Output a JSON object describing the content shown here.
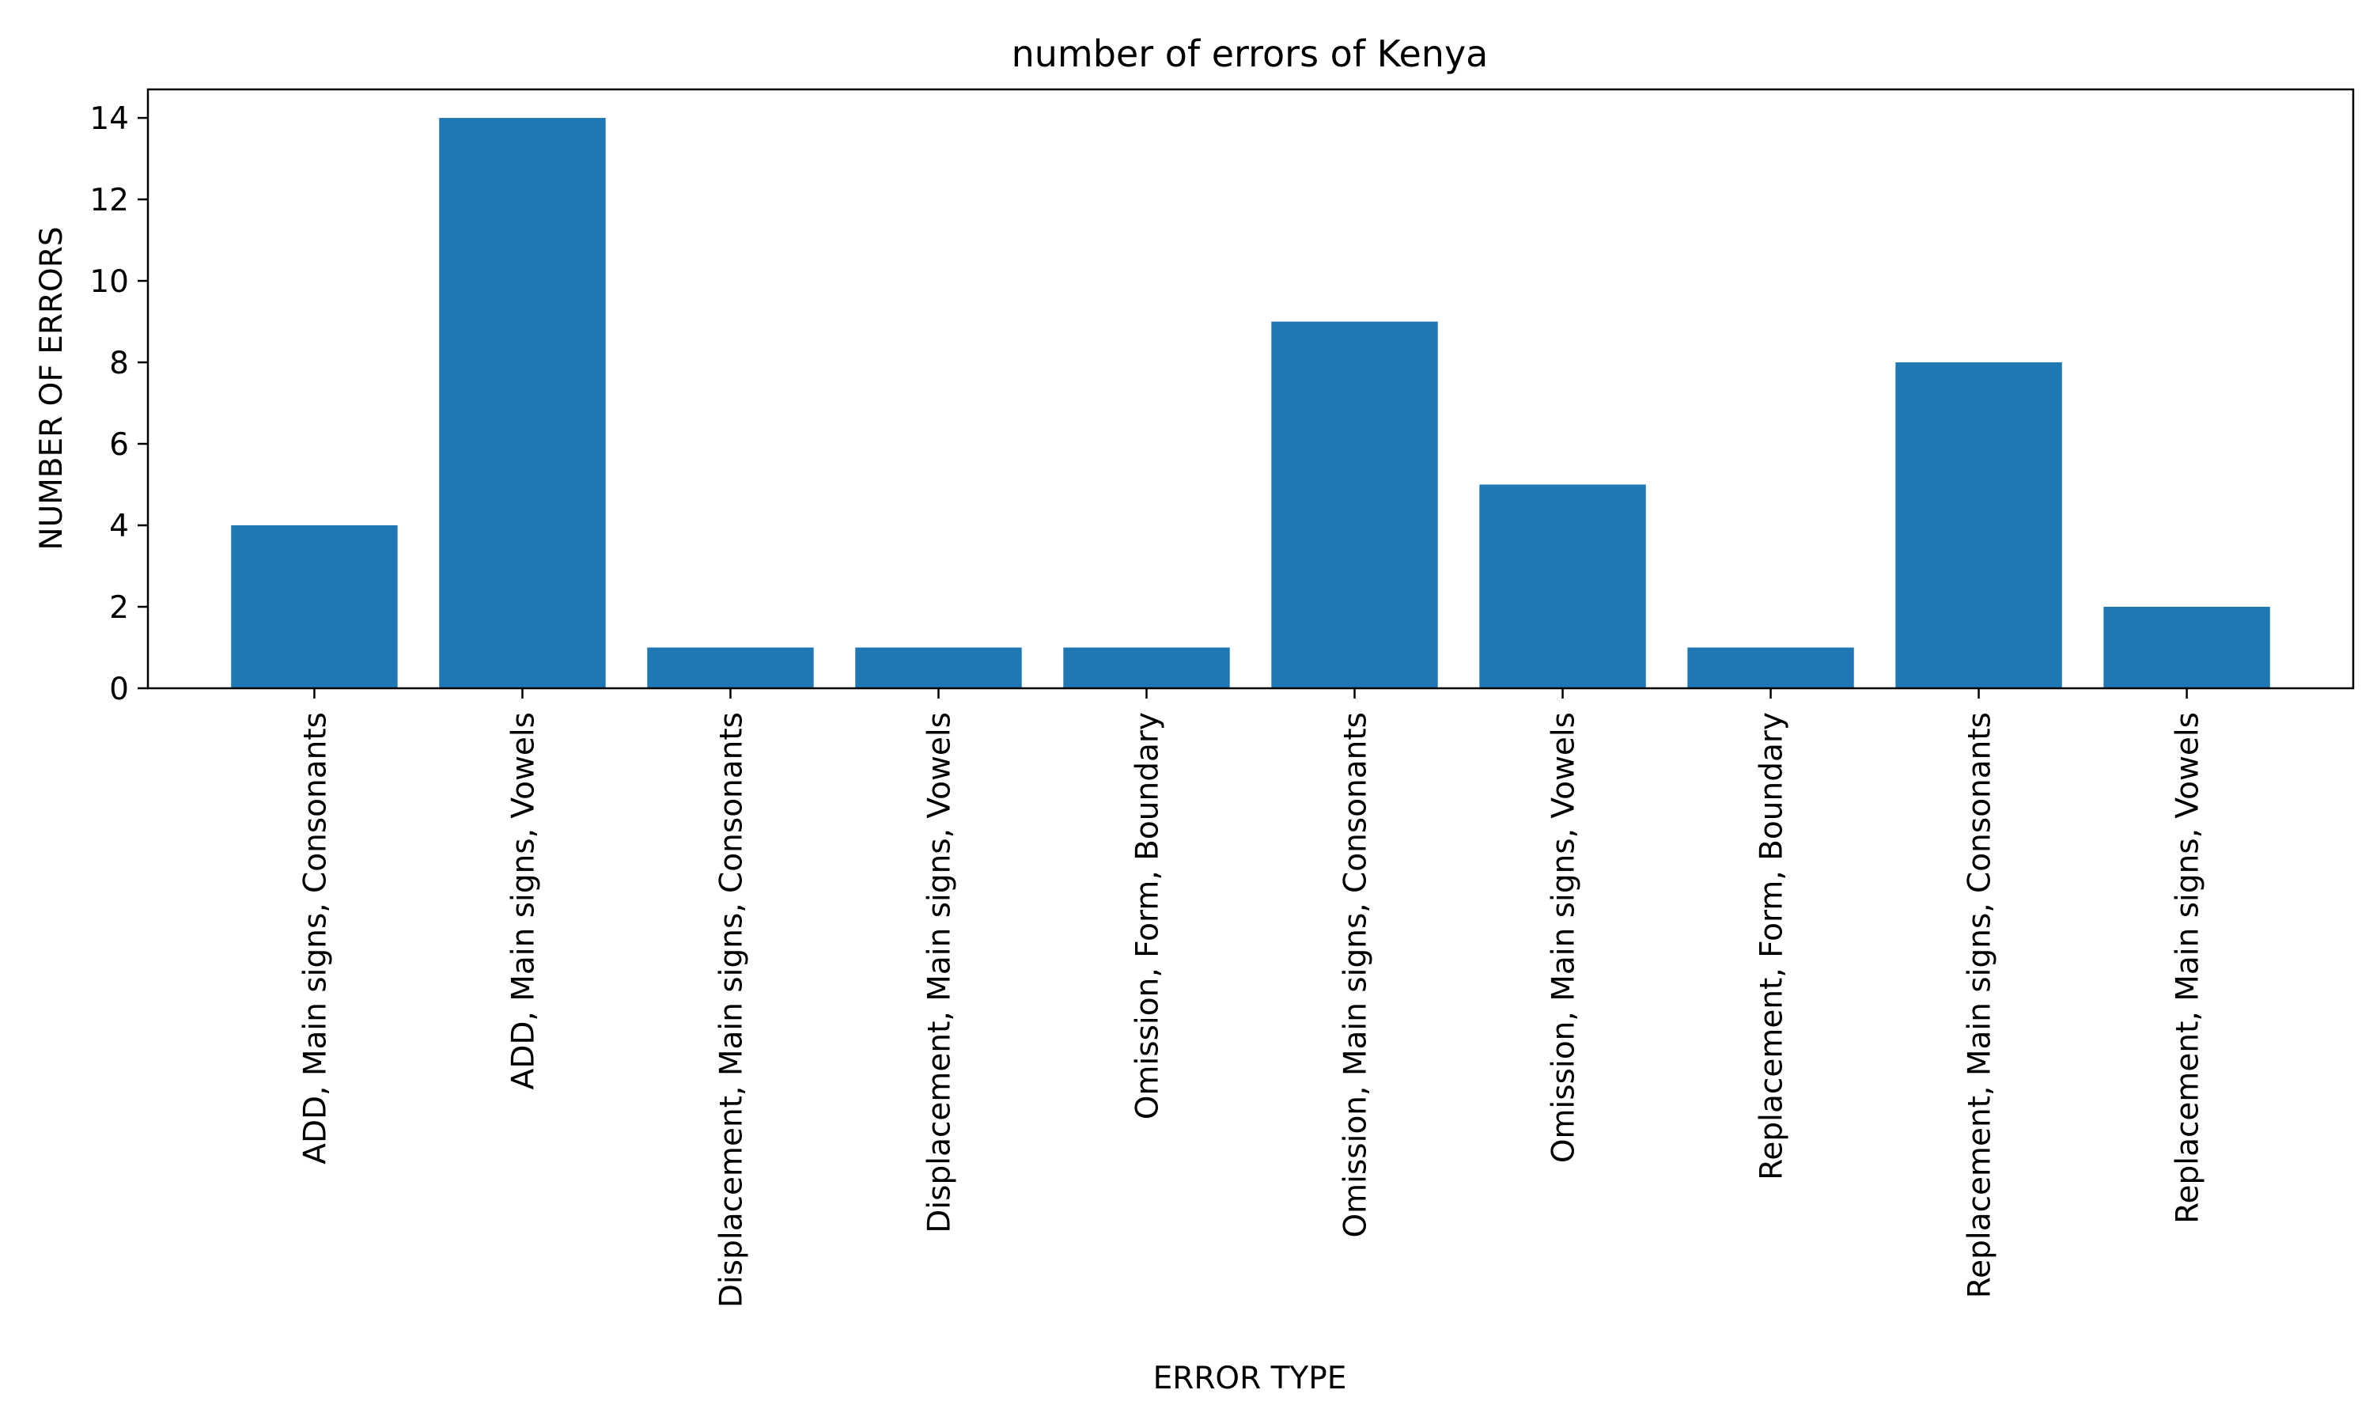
{
  "chart_data": {
    "type": "bar",
    "title": "number of errors of Kenya",
    "xlabel": "ERROR TYPE",
    "ylabel": "NUMBER OF ERRORS",
    "categories": [
      "ADD, Main signs, Consonants",
      "ADD, Main signs, Vowels",
      "Displacement, Main signs, Consonants",
      "Displacement, Main signs, Vowels",
      "Omission, Form, Boundary",
      "Omission, Main signs, Consonants",
      "Omission, Main signs, Vowels",
      "Replacement, Form, Boundary",
      "Replacement, Main signs, Consonants",
      "Replacement, Main signs, Vowels"
    ],
    "values": [
      4,
      14,
      1,
      1,
      1,
      9,
      5,
      1,
      8,
      2
    ],
    "ylim": [
      0,
      14.7
    ],
    "yticks": [
      0,
      2,
      4,
      6,
      8,
      10,
      12,
      14
    ],
    "grid": false,
    "legend": "none",
    "bar_color": "#1f77b4"
  }
}
